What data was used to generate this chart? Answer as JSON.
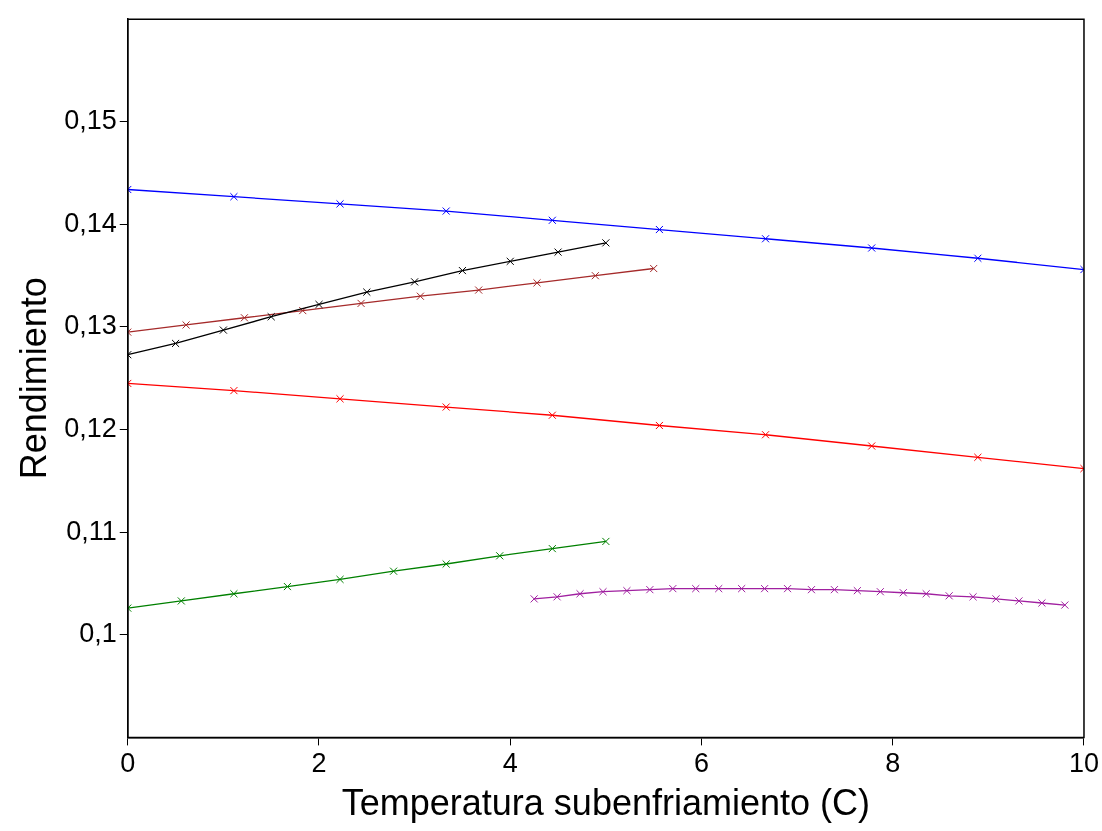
{
  "chart_data": {
    "type": "line",
    "xlabel": "Temperatura subenfriamiento (C)",
    "ylabel": "Rendimiento",
    "xlim": [
      0,
      10
    ],
    "xticks": [
      0,
      2,
      4,
      6,
      8,
      10
    ],
    "ylim": [
      0.09,
      0.16
    ],
    "yticks": [
      {
        "value": 0.1,
        "label": "0,1"
      },
      {
        "value": 0.11,
        "label": "0,11"
      },
      {
        "value": 0.12,
        "label": "0,12"
      },
      {
        "value": 0.13,
        "label": "0,13"
      },
      {
        "value": 0.14,
        "label": "0,14"
      },
      {
        "value": 0.15,
        "label": "0,15"
      }
    ],
    "grid": false,
    "legend": false,
    "marker": "cross",
    "line_style": "solid",
    "series": [
      {
        "color": "#0000ff",
        "x": [
          0,
          1.11,
          2.22,
          3.33,
          4.44,
          5.56,
          6.67,
          7.78,
          8.89,
          10
        ],
        "values": [
          0.1434,
          0.1427,
          0.142,
          0.1413,
          0.1404,
          0.1395,
          0.1386,
          0.1377,
          0.1367,
          0.1356
        ]
      },
      {
        "color": "#000000",
        "x": [
          0,
          0.5,
          1,
          1.5,
          2,
          2.5,
          3,
          3.5,
          4,
          4.5,
          5
        ],
        "values": [
          0.1273,
          0.1284,
          0.1297,
          0.131,
          0.1322,
          0.1334,
          0.1344,
          0.1355,
          0.1364,
          0.1373,
          0.1382
        ]
      },
      {
        "color": "#a52a2a",
        "x": [
          0,
          0.61,
          1.22,
          1.83,
          2.44,
          3.06,
          3.67,
          4.28,
          4.89,
          5.5
        ],
        "values": [
          0.1295,
          0.1302,
          0.1309,
          0.1316,
          0.1323,
          0.133,
          0.1336,
          0.1343,
          0.135,
          0.1357
        ]
      },
      {
        "color": "#ff0000",
        "x": [
          0,
          1.11,
          2.22,
          3.33,
          4.44,
          5.56,
          6.67,
          7.78,
          8.89,
          10
        ],
        "values": [
          0.1245,
          0.1238,
          0.123,
          0.1222,
          0.1214,
          0.1204,
          0.1195,
          0.1184,
          0.1173,
          0.1162
        ]
      },
      {
        "color": "#008000",
        "x": [
          0,
          0.56,
          1.11,
          1.67,
          2.22,
          2.78,
          3.33,
          3.89,
          4.44,
          5
        ],
        "values": [
          0.1026,
          0.1033,
          0.104,
          0.1047,
          0.1054,
          0.1062,
          0.1069,
          0.1077,
          0.1084,
          0.1091
        ]
      },
      {
        "color": "#a020a0",
        "x": [
          4.25,
          4.49,
          4.73,
          4.97,
          5.22,
          5.46,
          5.7,
          5.94,
          6.18,
          6.42,
          6.66,
          6.9,
          7.15,
          7.39,
          7.63,
          7.87,
          8.11,
          8.35,
          8.59,
          8.84,
          9.08,
          9.32,
          9.56,
          9.8
        ],
        "values": [
          0.1035,
          0.1037,
          0.104,
          0.1042,
          0.1043,
          0.1044,
          0.1045,
          0.1045,
          0.1045,
          0.1045,
          0.1045,
          0.1045,
          0.1044,
          0.1044,
          0.1043,
          0.1042,
          0.1041,
          0.104,
          0.1038,
          0.1037,
          0.1035,
          0.1033,
          0.1031,
          0.1029
        ]
      }
    ]
  }
}
